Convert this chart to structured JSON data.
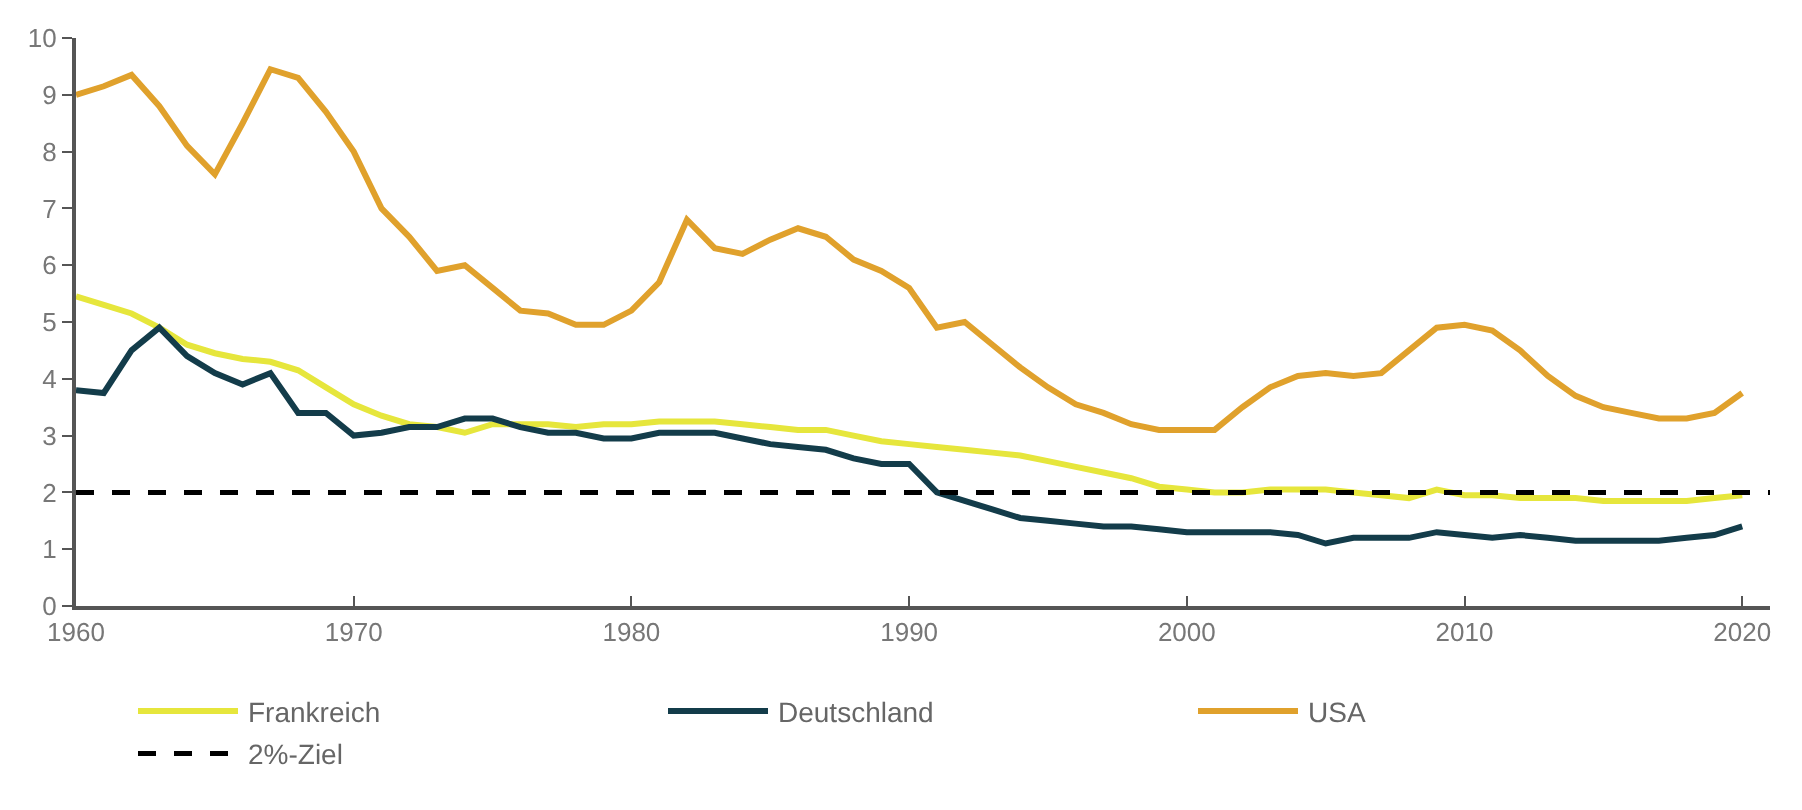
{
  "chart_data": {
    "type": "line",
    "x": [
      1960,
      1961,
      1962,
      1963,
      1964,
      1965,
      1966,
      1967,
      1968,
      1969,
      1970,
      1971,
      1972,
      1973,
      1974,
      1975,
      1976,
      1977,
      1978,
      1979,
      1980,
      1981,
      1982,
      1983,
      1984,
      1985,
      1986,
      1987,
      1988,
      1989,
      1990,
      1991,
      1992,
      1993,
      1994,
      1995,
      1996,
      1997,
      1998,
      1999,
      2000,
      2001,
      2002,
      2003,
      2004,
      2005,
      2006,
      2007,
      2008,
      2009,
      2010,
      2011,
      2012,
      2013,
      2014,
      2015,
      2016,
      2017,
      2018,
      2019,
      2020
    ],
    "series": [
      {
        "name": "Frankreich",
        "color": "#e6e63c",
        "values": [
          5.45,
          5.3,
          5.15,
          4.9,
          4.6,
          4.45,
          4.35,
          4.3,
          4.15,
          3.85,
          3.55,
          3.35,
          3.2,
          3.15,
          3.05,
          3.2,
          3.2,
          3.2,
          3.15,
          3.2,
          3.2,
          3.25,
          3.25,
          3.25,
          3.2,
          3.15,
          3.1,
          3.1,
          3.0,
          2.9,
          2.85,
          2.8,
          2.75,
          2.7,
          2.65,
          2.55,
          2.45,
          2.35,
          2.25,
          2.1,
          2.05,
          2.0,
          2.0,
          2.05,
          2.05,
          2.05,
          2.0,
          1.95,
          1.9,
          2.05,
          1.95,
          1.95,
          1.9,
          1.9,
          1.9,
          1.85,
          1.85,
          1.85,
          1.85,
          1.9,
          1.95
        ]
      },
      {
        "name": "Deutschland",
        "color": "#133c4a",
        "values": [
          3.8,
          3.75,
          4.5,
          4.9,
          4.4,
          4.1,
          3.9,
          4.1,
          3.4,
          3.4,
          3.0,
          3.05,
          3.15,
          3.15,
          3.3,
          3.3,
          3.15,
          3.05,
          3.05,
          2.95,
          2.95,
          3.05,
          3.05,
          3.05,
          2.95,
          2.85,
          2.8,
          2.75,
          2.6,
          2.5,
          2.5,
          2.0,
          1.85,
          1.7,
          1.55,
          1.5,
          1.45,
          1.4,
          1.4,
          1.35,
          1.3,
          1.3,
          1.3,
          1.3,
          1.25,
          1.1,
          1.2,
          1.2,
          1.2,
          1.3,
          1.25,
          1.2,
          1.25,
          1.2,
          1.15,
          1.15,
          1.15,
          1.15,
          1.2,
          1.25,
          1.4
        ]
      },
      {
        "name": "USA",
        "color": "#e0a12c",
        "values": [
          9.0,
          9.15,
          9.35,
          8.8,
          8.1,
          7.6,
          8.5,
          9.45,
          9.3,
          8.7,
          8.0,
          7.0,
          6.5,
          5.9,
          6.0,
          5.6,
          5.2,
          5.15,
          4.95,
          4.95,
          5.2,
          5.7,
          6.8,
          6.3,
          6.2,
          6.45,
          6.65,
          6.5,
          6.1,
          5.9,
          5.6,
          4.9,
          5.0,
          4.6,
          4.2,
          3.85,
          3.55,
          3.4,
          3.2,
          3.1,
          3.1,
          3.1,
          3.5,
          3.85,
          4.05,
          4.1,
          4.05,
          4.1,
          4.5,
          4.9,
          4.95,
          4.85,
          4.5,
          4.05,
          3.7,
          3.5,
          3.4,
          3.3,
          3.3,
          3.4,
          3.75
        ]
      }
    ],
    "ref_lines": [
      {
        "axis": "y",
        "value": 2,
        "label": "2%-Ziel",
        "color": "#000000",
        "line_style": "dashed"
      }
    ],
    "xlim": [
      1960,
      2021
    ],
    "xticks": [
      1960,
      1970,
      1980,
      1990,
      2000,
      2010,
      2020
    ],
    "ylim": [
      0,
      10
    ],
    "yticks": [
      0,
      1,
      2,
      3,
      4,
      5,
      6,
      7,
      8,
      9,
      10
    ],
    "legend": "bottom",
    "marker": "none",
    "line_style": "solid"
  }
}
